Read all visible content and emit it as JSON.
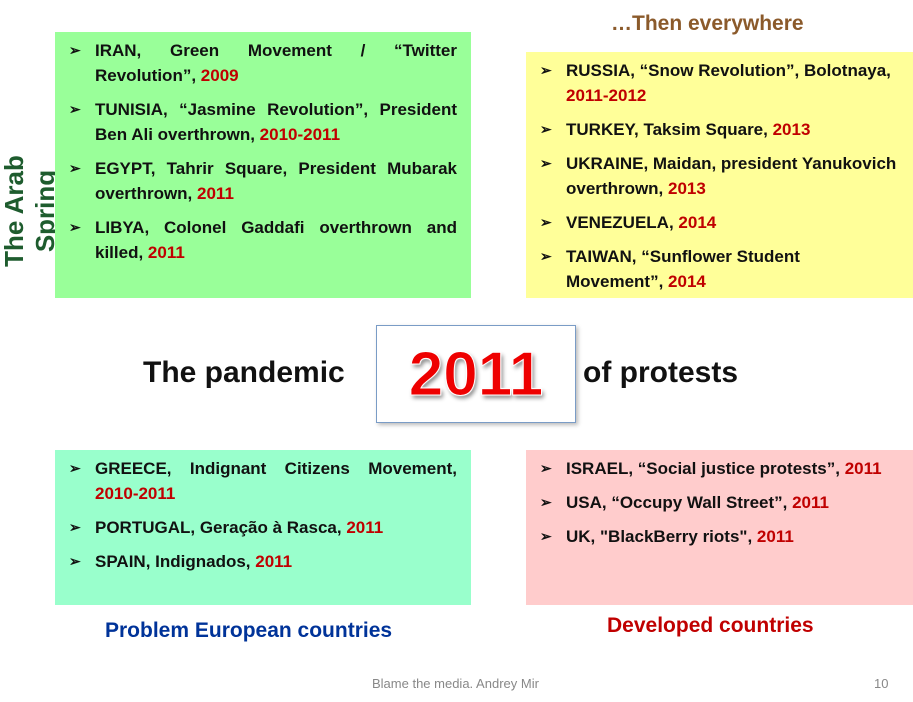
{
  "title_top_right": "…Then everywhere",
  "side_title": "The Arab Spring",
  "center": {
    "left": "The pandemic",
    "year": "2011",
    "right": "of protests"
  },
  "arab_spring": [
    {
      "text": "IRAN, Green Movement / “Twitter Revolution”, ",
      "year": "2009"
    },
    {
      "text": "TUNISIA, “Jasmine Revolution”, President Ben Ali overthrown, ",
      "year": "2010-2011"
    },
    {
      "text": "EGYPT, Tahrir Square, President Mubarak overthrown, ",
      "year": "2011"
    },
    {
      "text": "LIBYA, Colonel Gaddafi overthrown and killed, ",
      "year": "2011"
    }
  ],
  "everywhere": [
    {
      "text": "RUSSIA, “Snow Revolution”, Bolotnaya, ",
      "year": "2011-2012"
    },
    {
      "text": "TURKEY, Taksim Square, ",
      "year": "2013"
    },
    {
      "text": "UKRAINE, Maidan, president Yanukovich overthrown, ",
      "year": "2013"
    },
    {
      "text": "VENEZUELA, ",
      "year": "2014"
    },
    {
      "text": "TAIWAN, “Sunflower Student Movement”, ",
      "year": "2014"
    }
  ],
  "european": [
    {
      "text": "GREECE, Indignant Citizens Movement, ",
      "year": "2010-2011"
    },
    {
      "text": "PORTUGAL, Geração à Rasca, ",
      "year": "2011"
    },
    {
      "text": "SPAIN, Indignados, ",
      "year": "2011"
    }
  ],
  "developed": [
    {
      "text": "ISRAEL, “Social justice protests”, ",
      "year": "2011"
    },
    {
      "text": "USA, “Occupy Wall Street”, ",
      "year": "2011"
    },
    {
      "text": "UK, \"BlackBerry riots\", ",
      "year": "2011"
    }
  ],
  "label_european": "Problem European countries",
  "label_developed": "Developed countries",
  "footer": {
    "text": "Blame the media. Andrey Mir",
    "page": "10"
  },
  "bullet": "➢",
  "colors": {
    "green": "#99ff99",
    "yellow": "#ffff99",
    "mint": "#99ffcc",
    "pink": "#ffcccc",
    "year": "#c00000"
  }
}
